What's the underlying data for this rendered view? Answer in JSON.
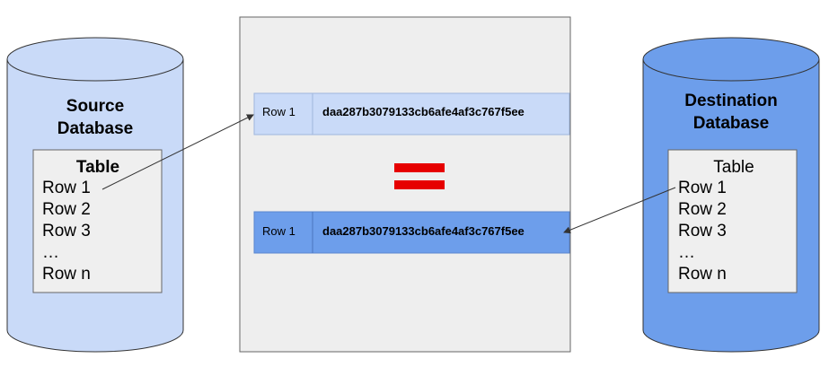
{
  "colors": {
    "source_cylinder": "#c9daf8",
    "dest_cylinder": "#6d9eeb",
    "cylinder_stroke": "#333333",
    "table_box": "#efefef",
    "comparison_panel": "#eeeeee",
    "top_row_bg": "#c9daf8",
    "bottom_row_bg": "#6d9eeb",
    "equals_sign": "#e60000"
  },
  "source": {
    "title_line1": "Source",
    "title_line2": "Database",
    "table": {
      "header": "Table",
      "rows": [
        "Row 1",
        "Row 2",
        "Row 3",
        "…",
        "Row n"
      ]
    }
  },
  "destination": {
    "title_line1": "Destination",
    "title_line2": "Database",
    "table": {
      "header": "Table",
      "rows": [
        "Row 1",
        "Row 2",
        "Row 3",
        "…",
        "Row n"
      ]
    }
  },
  "comparison": {
    "source_row": {
      "label": "Row 1",
      "hash": "daa287b3079133cb6afe4af3c767f5ee"
    },
    "dest_row": {
      "label": "Row 1",
      "hash": "daa287b3079133cb6afe4af3c767f5ee"
    },
    "operator_icon": "equals-icon"
  }
}
